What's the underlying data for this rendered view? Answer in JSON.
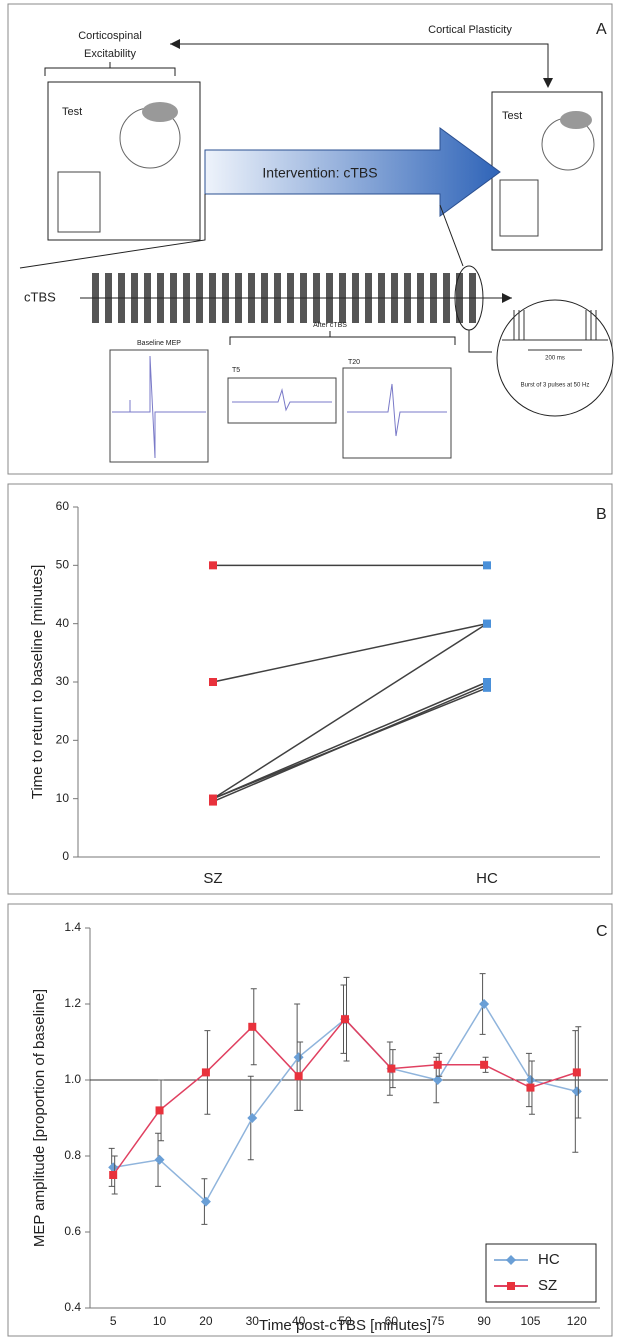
{
  "diagram": {
    "panel_label": "A",
    "excitability_line1": "Corticospinal",
    "excitability_line2": "Excitability",
    "plasticity": "Cortical Plasticity",
    "test_left": "Test",
    "test_right": "Test",
    "intervention": "Intervention: cTBS",
    "ctbs": "cTBS",
    "baseline_mep": "Baseline MEP",
    "after_ctbs": "After cTBS",
    "t5": "T5",
    "t20": "T20",
    "interval": "200 ms",
    "burst": "Burst of 3 pulses at 50 Hz"
  },
  "chart_data": [
    {
      "type": "line",
      "panel_label": "B",
      "ylabel": "Time to return to baseline [minutes]",
      "categories": [
        "SZ",
        "HC"
      ],
      "marker_colors": [
        "#e8323c",
        "#4a90d9"
      ],
      "line_color": "#404040",
      "series": [
        {
          "values": [
            50,
            50
          ]
        },
        {
          "values": [
            30,
            40
          ]
        },
        {
          "values": [
            10,
            40
          ]
        },
        {
          "values": [
            10,
            30
          ]
        },
        {
          "values": [
            9.5,
            29.5
          ]
        },
        {
          "values": [
            10,
            29
          ]
        }
      ],
      "ylim": [
        0,
        60
      ],
      "yticks": [
        0,
        10,
        20,
        30,
        40,
        50,
        60
      ]
    },
    {
      "type": "errorline",
      "panel_label": "C",
      "ylabel": "MEP amplitude [proportion of baseline]",
      "xlabel": "Time post-cTBS [minutes]",
      "categories": [
        "5",
        "10",
        "20",
        "30",
        "40",
        "50",
        "60",
        "75",
        "90",
        "105",
        "120"
      ],
      "series": [
        {
          "name": "HC",
          "color": "#8fb4dc",
          "marker": "diamond",
          "marker_color": "#6a9fd6",
          "values": [
            0.77,
            0.79,
            0.68,
            0.9,
            1.06,
            1.16,
            1.03,
            1.0,
            1.2,
            1.0,
            0.97
          ],
          "errors": [
            0.05,
            0.07,
            0.06,
            0.11,
            0.14,
            0.09,
            0.07,
            0.06,
            0.08,
            0.07,
            0.16
          ]
        },
        {
          "name": "SZ",
          "color": "#e04060",
          "marker": "square",
          "marker_color": "#e8323c",
          "values": [
            0.75,
            0.92,
            1.02,
            1.14,
            1.01,
            1.16,
            1.03,
            1.04,
            1.04,
            0.98,
            1.02
          ],
          "errors": [
            0.05,
            0.08,
            0.11,
            0.1,
            0.09,
            0.11,
            0.05,
            0.03,
            0.02,
            0.07,
            0.12
          ]
        }
      ],
      "hline": 1,
      "ylim": [
        0.4,
        1.4
      ],
      "yticks": [
        0.4,
        0.6,
        0.8,
        {
          "value": 1,
          "label": "1.0"
        },
        1.2,
        1.4
      ],
      "legend": "lower right"
    }
  ]
}
